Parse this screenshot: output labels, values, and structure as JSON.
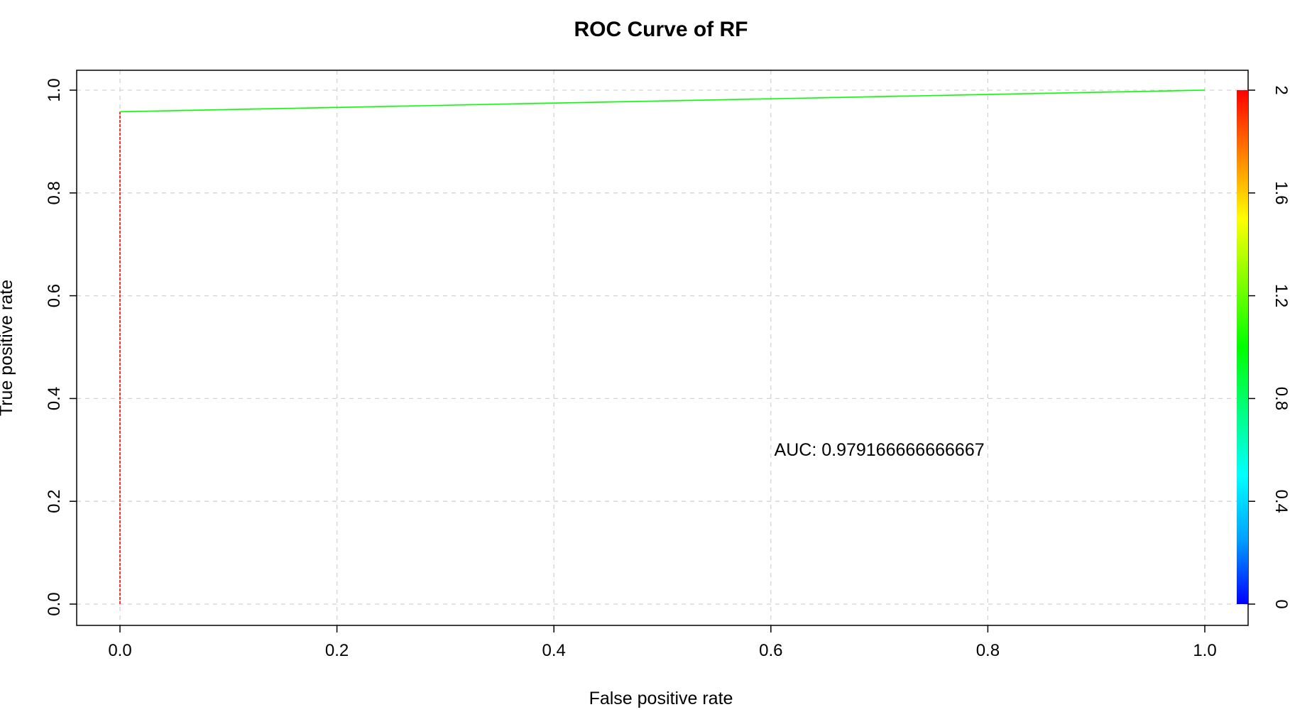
{
  "chart_data": {
    "type": "line",
    "title": "ROC Curve of RF",
    "xlabel": "False positive rate",
    "ylabel": "True positive rate",
    "xlim": [
      0,
      1
    ],
    "ylim": [
      0,
      1
    ],
    "x_ticks": [
      "0.0",
      "0.2",
      "0.4",
      "0.6",
      "0.8",
      "1.0"
    ],
    "y_ticks": [
      "0.0",
      "0.2",
      "0.4",
      "0.6",
      "0.8",
      "1.0"
    ],
    "grid": true,
    "series": [
      {
        "x": [
          0,
          0,
          1
        ],
        "y": [
          0,
          0.958,
          1.0
        ],
        "colored_by": "cutoff"
      }
    ],
    "colorbar": {
      "range": [
        0,
        2
      ],
      "ticks": [
        "0",
        "0.4",
        "0.8",
        "1.2",
        "1.6",
        "2"
      ],
      "colors": [
        "#0000ff",
        "#00a0ff",
        "#00ffff",
        "#00ff80",
        "#00ff00",
        "#80ff00",
        "#ffff00",
        "#ff8000",
        "#ff0000"
      ]
    },
    "annotation": {
      "text": "AUC: 0.979166666666667",
      "x": 0.7,
      "y": 0.3
    },
    "colors": {
      "segment_low": "#ff0000",
      "segment_high": "#00ff00",
      "grid": "#d3d3d3"
    }
  }
}
